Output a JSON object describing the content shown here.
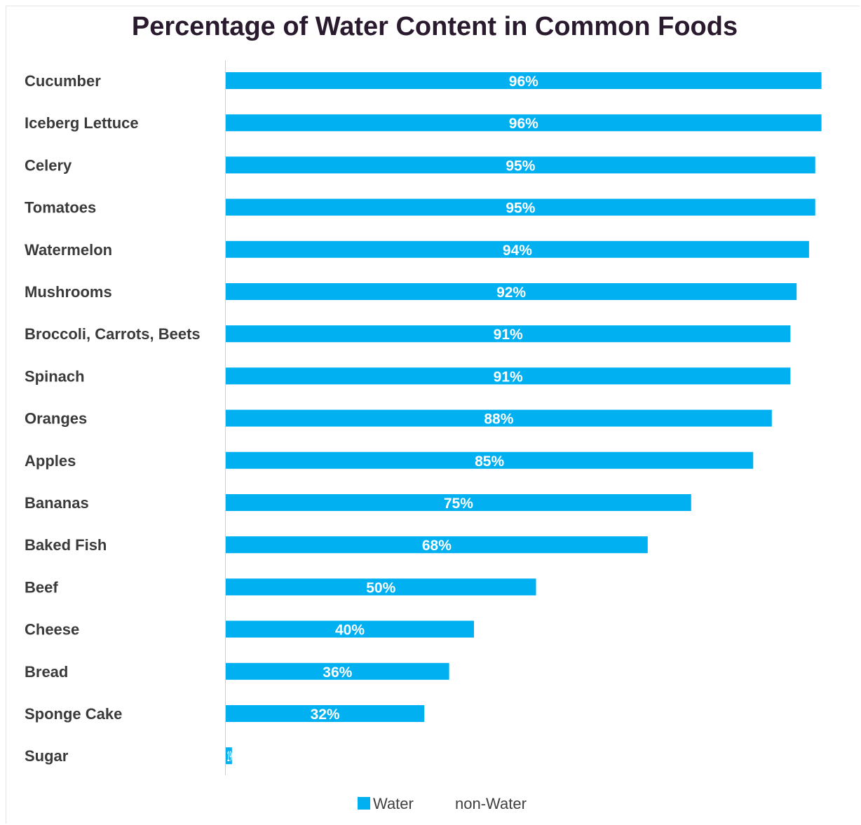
{
  "chart_data": {
    "type": "bar",
    "orientation": "horizontal",
    "stacked": true,
    "title": "Percentage of Water Content in Common Foods",
    "categories": [
      "Cucumber",
      "Iceberg Lettuce",
      "Celery",
      "Tomatoes",
      "Watermelon",
      "Mushrooms",
      "Broccoli, Carrots, Beets",
      "Spinach",
      "Oranges",
      "Apples",
      "Bananas",
      "Baked Fish",
      "Beef",
      "Cheese",
      "Bread",
      "Sponge Cake",
      "Sugar"
    ],
    "series": [
      {
        "name": "Water",
        "color": "#00b0f0",
        "values": [
          96,
          96,
          95,
          95,
          94,
          92,
          91,
          91,
          88,
          85,
          75,
          68,
          50,
          40,
          36,
          32,
          1
        ],
        "data_labels": [
          "96%",
          "96%",
          "95%",
          "95%",
          "94%",
          "92%",
          "91%",
          "91%",
          "88%",
          "85%",
          "75%",
          "68%",
          "50%",
          "40%",
          "36%",
          "32%",
          "1%"
        ]
      },
      {
        "name": "non-Water",
        "color": "#ffffff",
        "values": [
          4,
          4,
          5,
          5,
          6,
          8,
          9,
          9,
          12,
          15,
          25,
          32,
          50,
          60,
          64,
          68,
          99
        ]
      }
    ],
    "xlim": [
      0,
      100
    ],
    "grid": false,
    "legend": "bottom"
  }
}
